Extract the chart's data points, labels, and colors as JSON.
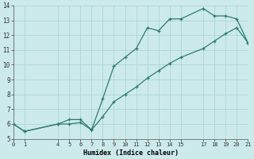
{
  "xlabel": "Humidex (Indice chaleur)",
  "bg_color": "#cdeaea",
  "grid_color": "#b0d8d8",
  "line_color": "#2e7d6e",
  "upper_x": [
    0,
    1,
    4,
    5,
    6,
    7,
    8,
    9,
    10,
    11,
    12,
    13,
    14,
    15,
    17,
    18,
    19,
    20,
    21
  ],
  "upper_y": [
    6.0,
    5.5,
    6.0,
    6.3,
    6.3,
    5.6,
    7.7,
    9.9,
    10.5,
    11.1,
    12.5,
    12.3,
    13.1,
    13.1,
    13.8,
    13.3,
    13.3,
    13.1,
    11.5
  ],
  "lower_x": [
    0,
    1,
    4,
    5,
    6,
    7,
    7,
    8,
    9,
    10,
    11,
    12,
    13,
    14,
    15,
    17,
    18,
    19,
    20,
    21
  ],
  "lower_y": [
    6.0,
    5.5,
    6.0,
    6.0,
    6.1,
    5.6,
    5.6,
    6.5,
    7.5,
    8.0,
    8.5,
    9.1,
    9.6,
    10.1,
    10.5,
    11.1,
    11.6,
    12.1,
    12.5,
    11.5
  ],
  "xlim": [
    0,
    21
  ],
  "ylim": [
    5,
    14
  ],
  "xticks": [
    0,
    1,
    4,
    5,
    6,
    7,
    8,
    9,
    10,
    11,
    12,
    13,
    14,
    15,
    17,
    18,
    19,
    20,
    21
  ],
  "yticks": [
    5,
    6,
    7,
    8,
    9,
    10,
    11,
    12,
    13,
    14
  ]
}
